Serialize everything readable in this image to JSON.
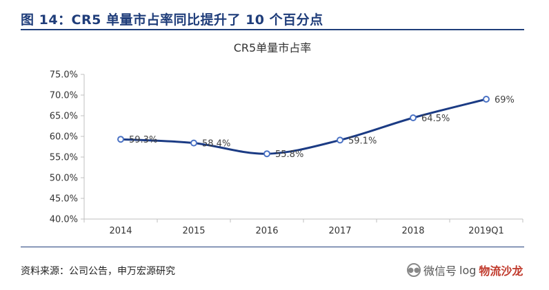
{
  "figure": {
    "title": "图 14：CR5 单量市占率同比提升了 10 个百分点",
    "source": "资料来源：公司公告，申万宏源研究"
  },
  "watermark": {
    "label": "微信号",
    "handle": "log",
    "brand": "物流沙龙"
  },
  "colors": {
    "accent": "#1f3d7a",
    "series_line": "#1b3b84",
    "marker_fill": "#ffffff",
    "marker_stroke": "#4a72c4"
  },
  "chart_data": {
    "type": "line",
    "title": "CR5单量市占率",
    "categories": [
      "2014",
      "2015",
      "2016",
      "2017",
      "2018",
      "2019Q1"
    ],
    "series": [
      {
        "values": [
          59.3,
          58.4,
          55.8,
          59.1,
          64.5,
          69
        ],
        "labels": [
          "59.3%",
          "58.4%",
          "55.8%",
          "59.1%",
          "64.5%",
          "69%"
        ]
      }
    ],
    "yticks": [
      "40.0%",
      "45.0%",
      "50.0%",
      "55.0%",
      "60.0%",
      "65.0%",
      "70.0%",
      "75.0%"
    ],
    "ylim": [
      40,
      75
    ],
    "grid": false,
    "legend": "none",
    "smooth": true
  }
}
